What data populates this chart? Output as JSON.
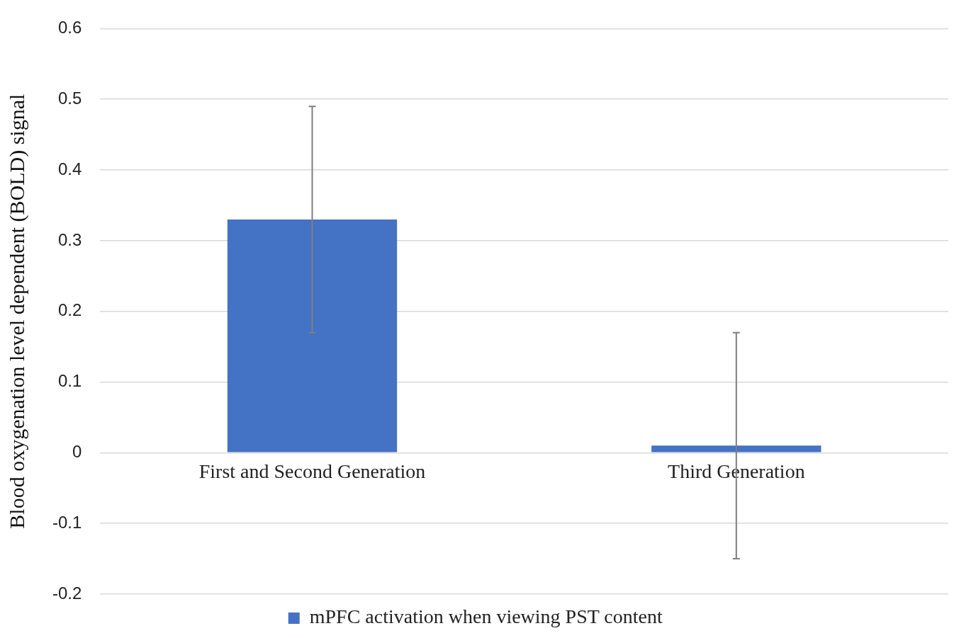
{
  "chart_data": {
    "type": "bar",
    "ylabel": "Blood oxygenation level dependent (BOLD) signal",
    "categories": [
      "First and Second Generation",
      "Third Generation"
    ],
    "series": [
      {
        "name": "mPFC activation when viewing PST content",
        "color": "#4472c4",
        "values": [
          0.33,
          0.01
        ],
        "errors": [
          0.16,
          0.16
        ]
      }
    ],
    "ylim": [
      -0.2,
      0.6
    ],
    "yticks": [
      -0.2,
      -0.1,
      0,
      0.1,
      0.2,
      0.3,
      0.4,
      0.5,
      0.6
    ],
    "grid": "y",
    "legend": "bottom"
  }
}
